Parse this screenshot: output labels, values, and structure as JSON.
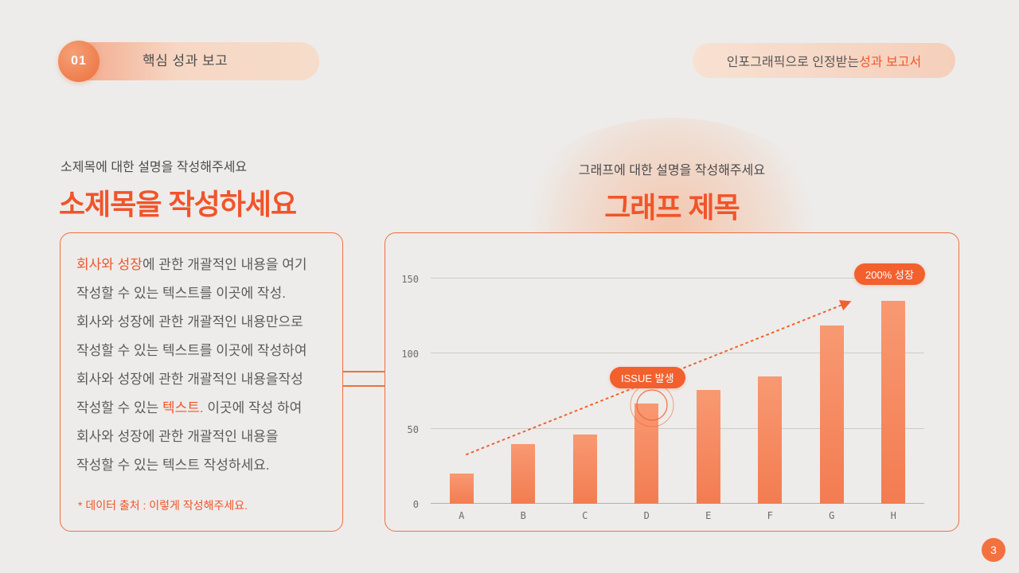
{
  "page": {
    "background": "#edecea",
    "accent": "#f1542a",
    "page_number": "3"
  },
  "header": {
    "number_badge": "01",
    "section_label": "핵심 성과 보고",
    "tagline_prefix": "인포그래픽으로 인정받는 ",
    "tagline_highlight": "성과 보고서"
  },
  "left_panel": {
    "caption": "소제목에 대한 설명을 작성해주세요",
    "title": "소제목을 작성하세요",
    "body_lines": [
      [
        {
          "t": "회사와 성장",
          "hl": true
        },
        {
          "t": "에 관한 개괄적인 내용을 여기",
          "hl": false
        }
      ],
      [
        {
          "t": "작성할 수 있는 텍스트를 이곳에 작성.",
          "hl": false
        }
      ],
      [
        {
          "t": "회사와 성장에 관한 개괄적인 내용만으로",
          "hl": false
        }
      ],
      [
        {
          "t": "작성할 수 있는 텍스트를 이곳에 작성하여",
          "hl": false
        }
      ],
      [
        {
          "t": "회사와 성장에 관한 개괄적인 내용을작성",
          "hl": false
        }
      ],
      [
        {
          "t": "작성할 수 있는 ",
          "hl": false
        },
        {
          "t": "텍스트.",
          "hl": true
        },
        {
          "t": " 이곳에 작성 하여",
          "hl": false
        }
      ],
      [
        {
          "t": "회사와 성장에 관한 개괄적인 내용을",
          "hl": false
        }
      ],
      [
        {
          "t": "작성할 수 있는 텍스트 작성하세요.",
          "hl": false
        }
      ]
    ],
    "footnote": "* 데이터 출처 : 이렇게 작성해주세요."
  },
  "right_panel": {
    "caption": "그래프에 대한 설명을 작성해주세요"
  },
  "chart_data": {
    "type": "bar",
    "title": "그래프 제목",
    "categories": [
      "A",
      "B",
      "C",
      "D",
      "E",
      "F",
      "G",
      "H"
    ],
    "values": [
      20,
      40,
      46,
      67,
      76,
      85,
      119,
      135
    ],
    "yticks": [
      0,
      50,
      100,
      150
    ],
    "ylim": [
      0,
      159
    ],
    "xlabel": "",
    "ylabel": "",
    "grid": true,
    "legend": "none",
    "bar_color": "#f58e67",
    "trendline": {
      "style": "dotted-arrow",
      "from_category": "A",
      "to_annotation": "growth_badge",
      "color": "#f2602e"
    },
    "annotations": {
      "growth_badge": "200% 성장",
      "issue_badge": "ISSUE 발생",
      "issue_target_category": "D"
    }
  }
}
